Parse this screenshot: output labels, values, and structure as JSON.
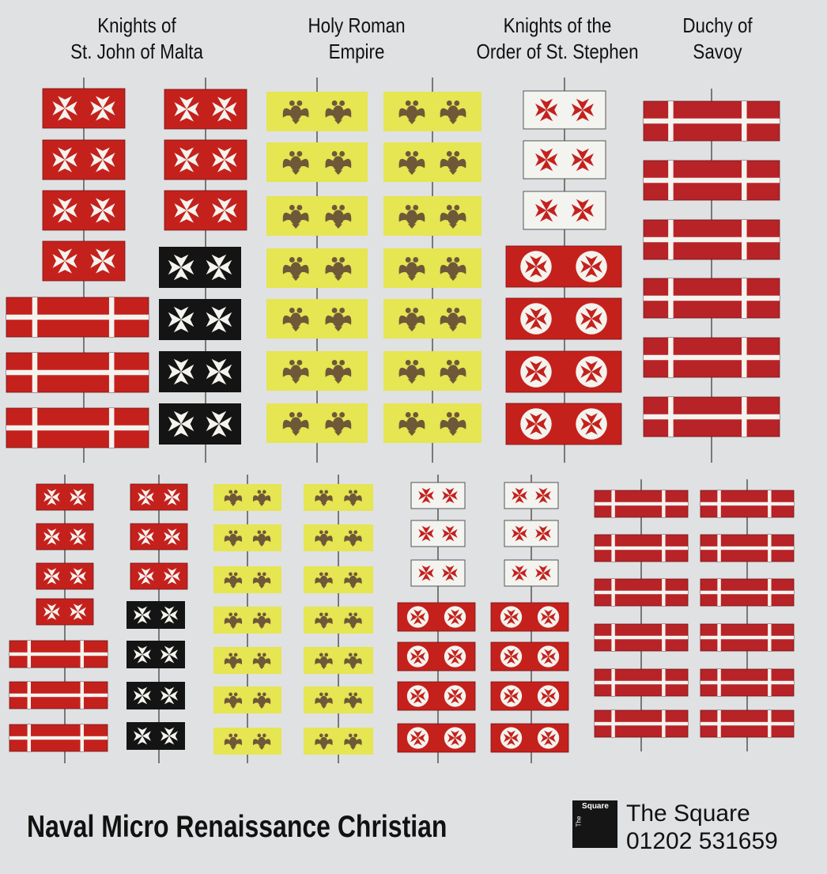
{
  "headers": [
    {
      "line1": "Knights of",
      "line2": "St. John of Malta"
    },
    {
      "line1": "Holy Roman",
      "line2": "Empire"
    },
    {
      "line1": "Knights of the",
      "line2": "Order of St. Stephen"
    },
    {
      "line1": "Duchy of",
      "line2": "Savoy"
    }
  ],
  "footer": {
    "title": "Naval Micro Renaissance Christian",
    "logo_text": "Square",
    "logo_small": "The",
    "brand": "The Square",
    "phone": "01202 531659"
  },
  "flag_types": {
    "malta-red": "red field, white maltese crosses",
    "malta-black": "black field, white maltese crosses",
    "malta-long": "red field, white cross",
    "hre": "yellow field, double-headed eagles",
    "stephen-white": "white field, red crosses",
    "stephen-red": "red field, white roundels with red crosses",
    "savoy": "red field, white cross"
  },
  "colors": {
    "background": "#dfe1e3",
    "red": "#c4211d",
    "savoy_red": "#b82328",
    "black": "#141414",
    "yellow": "#e6e552",
    "eagle": "#6e5838",
    "white": "#f4f3ee"
  }
}
